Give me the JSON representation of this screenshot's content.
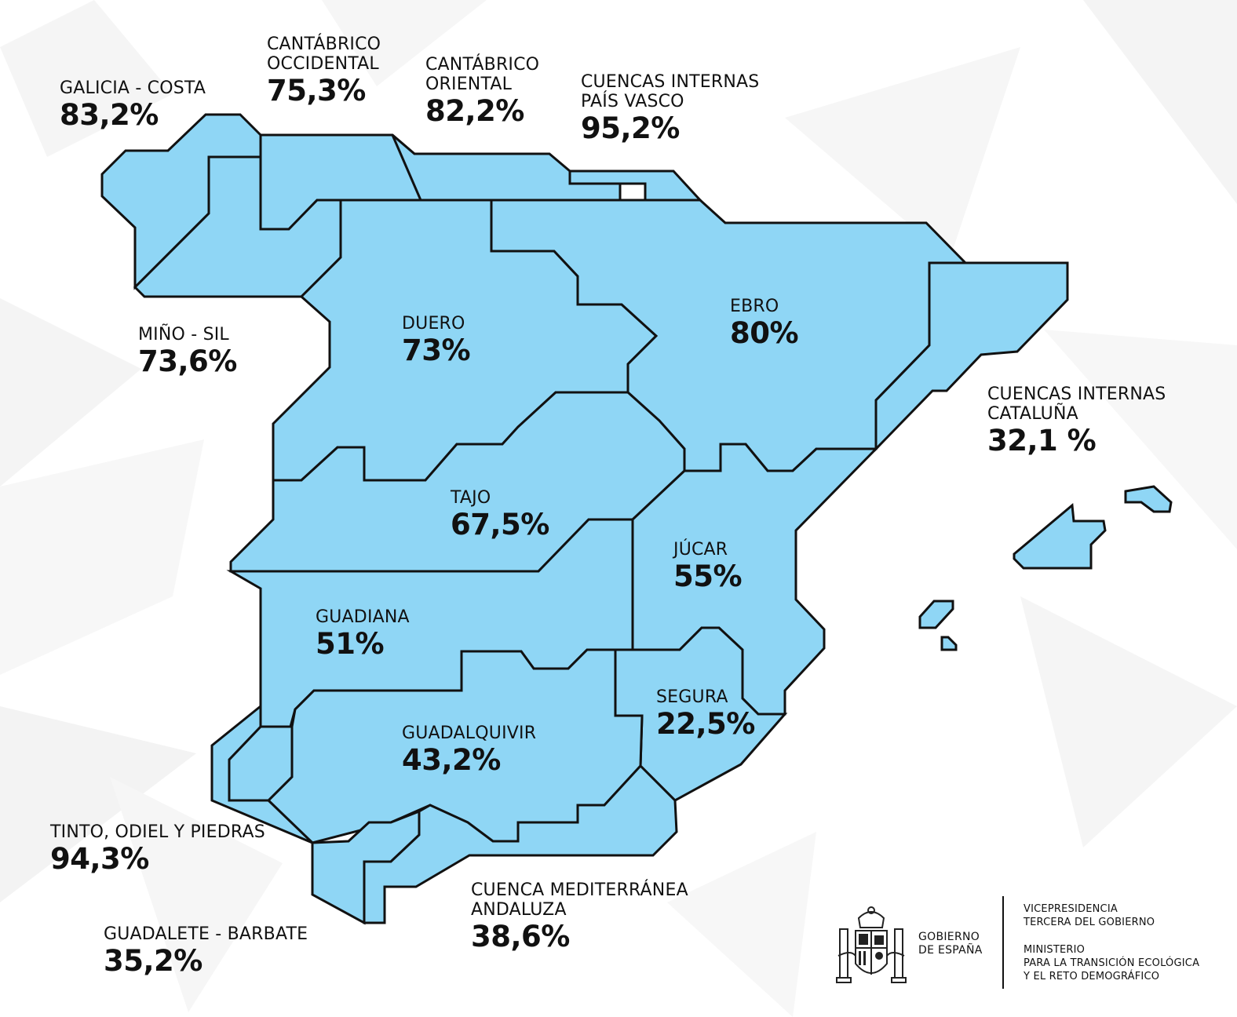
{
  "colors": {
    "basin_fill": "#8fd6f5",
    "border": "#111111",
    "background": "#ffffff"
  },
  "basins": [
    {
      "id": "galicia-costa",
      "name": [
        "GALICIA - COSTA"
      ],
      "value": "83,2%"
    },
    {
      "id": "cantabrico-occidental",
      "name": [
        "CANTÁBRICO",
        "OCCIDENTAL"
      ],
      "value": "75,3%"
    },
    {
      "id": "cantabrico-oriental",
      "name": [
        "CANTÁBRICO",
        "ORIENTAL"
      ],
      "value": "82,2%"
    },
    {
      "id": "cuencas-internas-pais-vasco",
      "name": [
        "CUENCAS INTERNAS",
        "PAÍS VASCO"
      ],
      "value": "95,2%"
    },
    {
      "id": "mino-sil",
      "name": [
        "MIÑO - SIL"
      ],
      "value": "73,6%"
    },
    {
      "id": "duero",
      "name": [
        "DUERO"
      ],
      "value": "73%"
    },
    {
      "id": "ebro",
      "name": [
        "EBRO"
      ],
      "value": "80%"
    },
    {
      "id": "cuencas-internas-cataluna",
      "name": [
        "CUENCAS INTERNAS",
        "CATALUÑA"
      ],
      "value": "32,1 %"
    },
    {
      "id": "tajo",
      "name": [
        "TAJO"
      ],
      "value": "67,5%"
    },
    {
      "id": "jucar",
      "name": [
        "JÚCAR"
      ],
      "value": "55%"
    },
    {
      "id": "guadiana",
      "name": [
        "GUADIANA"
      ],
      "value": "51%"
    },
    {
      "id": "segura",
      "name": [
        "SEGURA"
      ],
      "value": "22,5%"
    },
    {
      "id": "guadalquivir",
      "name": [
        "GUADALQUIVIR"
      ],
      "value": "43,2%"
    },
    {
      "id": "tinto-odiel-piedras",
      "name": [
        "TINTO, ODIEL Y PIEDRAS"
      ],
      "value": "94,3%"
    },
    {
      "id": "cuenca-mediterranea-andaluza",
      "name": [
        "CUENCA MEDITERRÁNEA",
        "ANDALUZA"
      ],
      "value": "38,6%"
    },
    {
      "id": "guadalete-barbate",
      "name": [
        "GUADALETE - BARBATE"
      ],
      "value": "35,2%"
    }
  ],
  "footer": {
    "gobierno": [
      "GOBIERNO",
      "DE ESPAÑA"
    ],
    "vicepresidencia": [
      "VICEPRESIDENCIA",
      "TERCERA DEL GOBIERNO"
    ],
    "ministerio": [
      "MINISTERIO",
      "PARA LA TRANSICIÓN ECOLÓGICA",
      "Y EL RETO DEMOGRÁFICO"
    ]
  }
}
